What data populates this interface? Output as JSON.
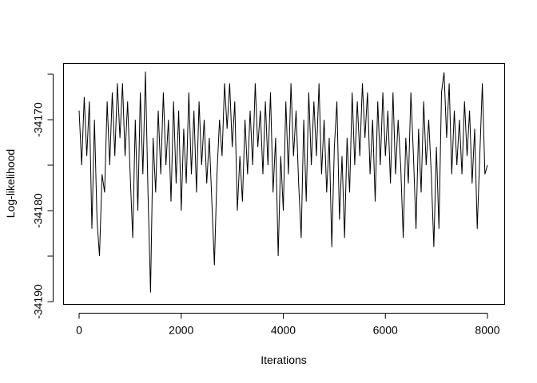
{
  "chart_data": {
    "type": "line",
    "title": "",
    "xlabel": "Iterations",
    "ylabel": "Log-likelihood",
    "xlim": [
      0,
      8000
    ],
    "ylim": [
      -34190,
      -34164.5
    ],
    "x_ticks": [
      0,
      2000,
      4000,
      6000,
      8000
    ],
    "y_ticks": [
      -34190,
      -34185,
      -34180,
      -34175,
      -34170,
      -34165
    ],
    "y_tick_labels": [
      {
        "value": -34190,
        "label": "-34190"
      },
      {
        "value": -34180,
        "label": "-34180"
      },
      {
        "value": -34170,
        "label": "-34170"
      }
    ],
    "grid": false,
    "color": "#000000",
    "series": [
      {
        "x": [
          0,
          50,
          100,
          150,
          200,
          250,
          300,
          350,
          400,
          450,
          500,
          550,
          600,
          650,
          700,
          750,
          800,
          850,
          900,
          950,
          1000,
          1050,
          1100,
          1150,
          1200,
          1250,
          1300,
          1350,
          1400,
          1450,
          1500,
          1550,
          1600,
          1650,
          1700,
          1750,
          1800,
          1850,
          1900,
          1950,
          2000,
          2050,
          2100,
          2150,
          2200,
          2250,
          2300,
          2350,
          2400,
          2450,
          2500,
          2550,
          2600,
          2650,
          2700,
          2750,
          2800,
          2850,
          2900,
          2950,
          3000,
          3050,
          3100,
          3150,
          3200,
          3250,
          3300,
          3350,
          3400,
          3450,
          3500,
          3550,
          3600,
          3650,
          3700,
          3750,
          3800,
          3850,
          3900,
          3950,
          4000,
          4050,
          4100,
          4150,
          4200,
          4250,
          4300,
          4350,
          4400,
          4450,
          4500,
          4550,
          4600,
          4650,
          4700,
          4750,
          4800,
          4850,
          4900,
          4950,
          5000,
          5050,
          5100,
          5150,
          5200,
          5250,
          5300,
          5350,
          5400,
          5450,
          5500,
          5550,
          5600,
          5650,
          5700,
          5750,
          5800,
          5850,
          5900,
          5950,
          6000,
          6050,
          6100,
          6150,
          6200,
          6250,
          6300,
          6350,
          6400,
          6450,
          6500,
          6550,
          6600,
          6650,
          6700,
          6750,
          6800,
          6850,
          6900,
          6950,
          7000,
          7050,
          7100,
          7150,
          7200,
          7250,
          7300,
          7350,
          7400,
          7450,
          7500,
          7550,
          7600,
          7650,
          7700,
          7750,
          7800,
          7850,
          7900,
          7950,
          8000
        ],
        "y": [
          -34169,
          -34175,
          -34167.5,
          -34174,
          -34168,
          -34182,
          -34170,
          -34181,
          -34185,
          -34176,
          -34178,
          -34168,
          -34175,
          -34167,
          -34174,
          -34166,
          -34172,
          -34166,
          -34174,
          -34168,
          -34176,
          -34183,
          -34170,
          -34180,
          -34167,
          -34176,
          -34164.7,
          -34178,
          -34189,
          -34172,
          -34178,
          -34169,
          -34176,
          -34167,
          -34175,
          -34170,
          -34179,
          -34168,
          -34177,
          -34169,
          -34180,
          -34171,
          -34177,
          -34167,
          -34176,
          -34169,
          -34178,
          -34168,
          -34175,
          -34170,
          -34177,
          -34172,
          -34179,
          -34186,
          -34176,
          -34170,
          -34174,
          -34166,
          -34171,
          -34166,
          -34173,
          -34168,
          -34180,
          -34174,
          -34179,
          -34170,
          -34176,
          -34169,
          -34175,
          -34166,
          -34173,
          -34169,
          -34176,
          -34168,
          -34175,
          -34167,
          -34178,
          -34172,
          -34185,
          -34174,
          -34180,
          -34168,
          -34176,
          -34166,
          -34174,
          -34169,
          -34177,
          -34183,
          -34170,
          -34179,
          -34167,
          -34175,
          -34168,
          -34174,
          -34166,
          -34176,
          -34170,
          -34178,
          -34172,
          -34184,
          -34173,
          -34168,
          -34181,
          -34174,
          -34183,
          -34172,
          -34178,
          -34167,
          -34175,
          -34168,
          -34174,
          -34166,
          -34172,
          -34167,
          -34176,
          -34170,
          -34179,
          -34168,
          -34175,
          -34167,
          -34174,
          -34169,
          -34177,
          -34167,
          -34176,
          -34170,
          -34175,
          -34183,
          -34172,
          -34177,
          -34167,
          -34174,
          -34182,
          -34171,
          -34178,
          -34168,
          -34175,
          -34170,
          -34176,
          -34184,
          -34173,
          -34182,
          -34167,
          -34164.8,
          -34172,
          -34166,
          -34176,
          -34169,
          -34175,
          -34170,
          -34176,
          -34168,
          -34174,
          -34169,
          -34177,
          -34171,
          -34182,
          -34174,
          -34166,
          -34176,
          -34175
        ]
      }
    ]
  }
}
